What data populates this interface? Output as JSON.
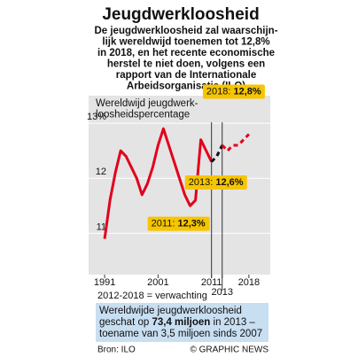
{
  "chart_data": {
    "type": "line",
    "title": "Jeugdwerkloosheid",
    "subtitle": [
      "De jeugdwerkloosheid zal waarschijn-",
      "lijk wereldwijd toenemen tot 12,8%",
      "in 2018, en het recente economische",
      "herstel te niet doen, volgens een",
      "rapport van de Internationale",
      "Arbeidsorganisatie (ILO)"
    ],
    "y_label": [
      "Wereldwijd jeugdwerk-",
      "loosheidspercentage"
    ],
    "x": [
      1991,
      1992,
      1993,
      1994,
      1995,
      1996,
      1997,
      1998,
      1999,
      2000,
      2001,
      2002,
      2003,
      2004,
      2005,
      2006,
      2007,
      2008,
      2009,
      2010,
      2011,
      2012,
      2013,
      2014,
      2015,
      2016,
      2017,
      2018
    ],
    "series": [
      {
        "color": "#e3001b",
        "dash": false,
        "values": [
          10.9,
          11.6,
          12.1,
          12.5,
          12.4,
          12.2,
          12.0,
          11.7,
          11.9,
          12.2,
          12.6,
          12.9,
          12.6,
          12.3,
          12.0,
          11.7,
          11.5,
          11.6,
          12.7,
          12.5,
          12.3,
          null,
          null,
          null,
          null,
          null,
          null,
          null
        ]
      },
      {
        "color": "#111111",
        "dash": true,
        "values": [
          null,
          null,
          null,
          null,
          null,
          null,
          null,
          null,
          null,
          null,
          null,
          null,
          null,
          null,
          null,
          null,
          null,
          null,
          null,
          null,
          12.3,
          12.4,
          12.6,
          null,
          null,
          null,
          null,
          null
        ]
      },
      {
        "color": "#e3001b",
        "dash": true,
        "values": [
          null,
          null,
          null,
          null,
          null,
          null,
          null,
          null,
          null,
          null,
          null,
          null,
          null,
          null,
          null,
          null,
          null,
          null,
          null,
          null,
          null,
          null,
          12.6,
          12.5,
          12.6,
          12.6,
          12.7,
          12.8
        ]
      }
    ],
    "xlim": [
      1988,
      2022
    ],
    "ylim": [
      10.25,
      13.5
    ],
    "xticks": [
      1991,
      2001,
      2011,
      2013,
      2018
    ],
    "yticks": [
      {
        "value": 13,
        "label": "13%"
      },
      12,
      11
    ],
    "markers": [
      2011,
      2013
    ],
    "annotations": [
      {
        "label": "2018:",
        "value_label": "12,8%",
        "x": 2018,
        "y": 12.8
      },
      {
        "label": "2011:",
        "value_label": "12,3%",
        "x": 2011,
        "y": 12.3
      },
      {
        "label": "2013:",
        "value_label": "12,6%",
        "x": 2013,
        "y": 12.6
      }
    ],
    "note": "2012-2018 = verwachting",
    "summary": [
      [
        "Wereldwijde jeugdwerkloosheid"
      ],
      [
        "geschat op ",
        "73,4 miljoen",
        " in 2013 –"
      ],
      [
        "toename van 3,5 miljoen sinds 2007"
      ]
    ],
    "source": "Bron: ILO",
    "credit": "© GRAPHIC NEWS"
  }
}
